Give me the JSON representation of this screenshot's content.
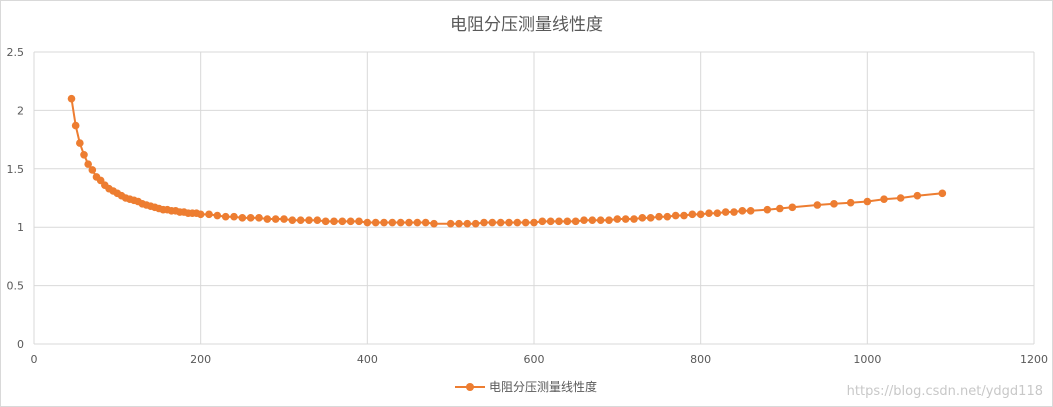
{
  "chart_data": {
    "type": "line",
    "title": "电阻分压测量线性度",
    "xlabel": "",
    "ylabel": "",
    "xlim": [
      0,
      1200
    ],
    "ylim": [
      0,
      2.5
    ],
    "xticks": [
      "0",
      "200",
      "400",
      "600",
      "800",
      "1000",
      "1200"
    ],
    "yticks": [
      "0",
      "0.5",
      "1",
      "1.5",
      "2",
      "2.5"
    ],
    "grid": true,
    "legend_position": "bottom",
    "color": "#ed7d31",
    "series": [
      {
        "name": "电阻分压测量线性度",
        "x": [
          45,
          50,
          55,
          60,
          65,
          70,
          75,
          80,
          85,
          90,
          95,
          100,
          105,
          110,
          115,
          120,
          125,
          130,
          135,
          140,
          145,
          150,
          155,
          160,
          165,
          170,
          175,
          180,
          185,
          190,
          195,
          200,
          210,
          220,
          230,
          240,
          250,
          260,
          270,
          280,
          290,
          300,
          310,
          320,
          330,
          340,
          350,
          360,
          370,
          380,
          390,
          400,
          410,
          420,
          430,
          440,
          450,
          460,
          470,
          480,
          500,
          510,
          520,
          530,
          540,
          550,
          560,
          570,
          580,
          590,
          600,
          610,
          620,
          630,
          640,
          650,
          660,
          670,
          680,
          690,
          700,
          710,
          720,
          730,
          740,
          750,
          760,
          770,
          780,
          790,
          800,
          810,
          820,
          830,
          840,
          850,
          860,
          880,
          895,
          910,
          940,
          960,
          980,
          1000,
          1020,
          1040,
          1060,
          1090
        ],
        "y": [
          2.1,
          1.87,
          1.72,
          1.62,
          1.54,
          1.49,
          1.43,
          1.4,
          1.36,
          1.33,
          1.31,
          1.29,
          1.27,
          1.25,
          1.24,
          1.23,
          1.22,
          1.2,
          1.19,
          1.18,
          1.17,
          1.16,
          1.15,
          1.15,
          1.14,
          1.14,
          1.13,
          1.13,
          1.12,
          1.12,
          1.12,
          1.11,
          1.11,
          1.1,
          1.09,
          1.09,
          1.08,
          1.08,
          1.08,
          1.07,
          1.07,
          1.07,
          1.06,
          1.06,
          1.06,
          1.06,
          1.05,
          1.05,
          1.05,
          1.05,
          1.05,
          1.04,
          1.04,
          1.04,
          1.04,
          1.04,
          1.04,
          1.04,
          1.04,
          1.03,
          1.03,
          1.03,
          1.03,
          1.03,
          1.04,
          1.04,
          1.04,
          1.04,
          1.04,
          1.04,
          1.04,
          1.05,
          1.05,
          1.05,
          1.05,
          1.05,
          1.06,
          1.06,
          1.06,
          1.06,
          1.07,
          1.07,
          1.07,
          1.08,
          1.08,
          1.09,
          1.09,
          1.1,
          1.1,
          1.11,
          1.11,
          1.12,
          1.12,
          1.13,
          1.13,
          1.14,
          1.14,
          1.15,
          1.16,
          1.17,
          1.19,
          1.2,
          1.21,
          1.22,
          1.24,
          1.25,
          1.27,
          1.29
        ]
      }
    ]
  },
  "watermark": "https://blog.csdn.net/ydgd118"
}
